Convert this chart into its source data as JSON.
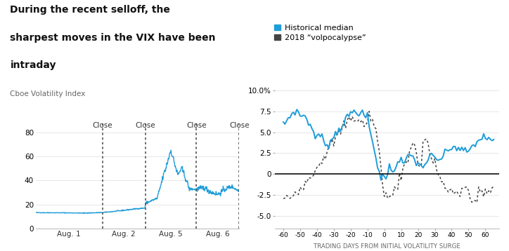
{
  "left_title_line1": "During the recent selloff, the",
  "left_title_line2": "sharpest moves in the VIX have been",
  "left_title_line3": "intraday",
  "left_subtitle": "Cboe Volatility Index",
  "left_yticks": [
    0,
    20,
    40,
    60,
    80
  ],
  "date_labels": [
    "Aug. 1",
    "Aug. 2",
    "Aug. 5",
    "Aug. 6"
  ],
  "right_legend_line1": "Historical median",
  "right_legend_line2": "2018 “volpocalypse”",
  "right_yticks": [
    -5.0,
    -2.5,
    0,
    2.5,
    5.0,
    7.5,
    10.0
  ],
  "right_ytick_labels": [
    "-5.0",
    "-2.5",
    "0",
    "2.5",
    "5.0",
    "7.5",
    "10.0%"
  ],
  "right_xlabel": "TRADING DAYS FROM INITIAL VOLATILITY SURGE",
  "right_xticks": [
    -60,
    -50,
    -40,
    -30,
    -20,
    -10,
    0,
    10,
    20,
    30,
    40,
    50,
    60
  ],
  "right_xtick_labels": [
    "-60",
    "-50",
    "-40",
    "-30",
    "-20",
    "-10",
    "0",
    "10",
    "20",
    "30",
    "40",
    "50",
    "60"
  ],
  "color_blue": "#1f9dd9",
  "color_dark": "#444444",
  "background": "#ffffff"
}
